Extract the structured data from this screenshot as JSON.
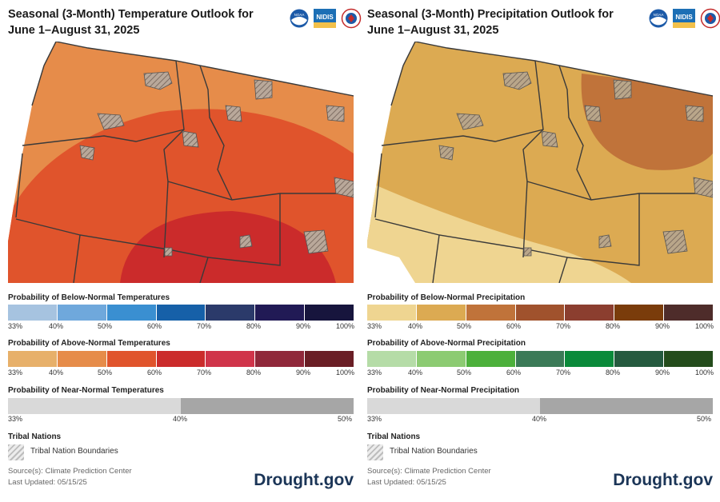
{
  "temperature": {
    "title": "Seasonal (3-Month) Temperature Outlook for June 1–August 31, 2025",
    "below_label": "Probability of Below-Normal Temperatures",
    "below_colors": [
      "#a6c3e0",
      "#6fa8dc",
      "#3a8fd1",
      "#1660a8",
      "#2b3a6a",
      "#211a55",
      "#17153d"
    ],
    "above_label": "Probability of Above-Normal Temperatures",
    "above_colors": [
      "#e7b06a",
      "#e68c4a",
      "#e0542c",
      "#cb2b2b",
      "#d0344a",
      "#90283a",
      "#6a1e25"
    ],
    "near_label": "Probability of Near-Normal Temperatures",
    "ticks": [
      "33%",
      "40%",
      "50%",
      "60%",
      "70%",
      "80%",
      "90%",
      "100%"
    ],
    "near_ticks": [
      "33%",
      "40%",
      "50%"
    ],
    "map_colors": {
      "base": "#e68c4a",
      "mid": "#e0542c",
      "inner": "#cb2b2b"
    }
  },
  "precipitation": {
    "title": "Seasonal (3-Month) Precipitation Outlook for June 1–August 31, 2025",
    "below_label": "Probability of Below-Normal Precipitation",
    "below_colors": [
      "#efd591",
      "#dcaa52",
      "#c0733a",
      "#a0522d",
      "#8b3e2f",
      "#7a3c0b",
      "#4e2c2a"
    ],
    "above_label": "Probability of Above-Normal Precipitation",
    "above_colors": [
      "#b5dca7",
      "#8ccb72",
      "#4cb03b",
      "#3b7a57",
      "#0a8a3a",
      "#255a3f",
      "#244c1c"
    ],
    "near_label": "Probability of Near-Normal Precipitation",
    "ticks": [
      "33%",
      "40%",
      "50%",
      "60%",
      "70%",
      "80%",
      "90%",
      "100%"
    ],
    "near_ticks": [
      "33%",
      "40%",
      "50%"
    ],
    "map_colors": {
      "base": "#dcaa52",
      "light": "#efd591",
      "dark": "#c0733a"
    }
  },
  "logos": {
    "noaa": "NOAA",
    "nidis": "NIDIS",
    "nws": "NWS"
  },
  "tribal": {
    "heading": "Tribal Nations",
    "label": "Tribal Nation Boundaries"
  },
  "source": {
    "line1": "Source(s): Climate Prediction Center",
    "line2": "Last Updated: 05/15/25"
  },
  "brand": "Drought.gov"
}
